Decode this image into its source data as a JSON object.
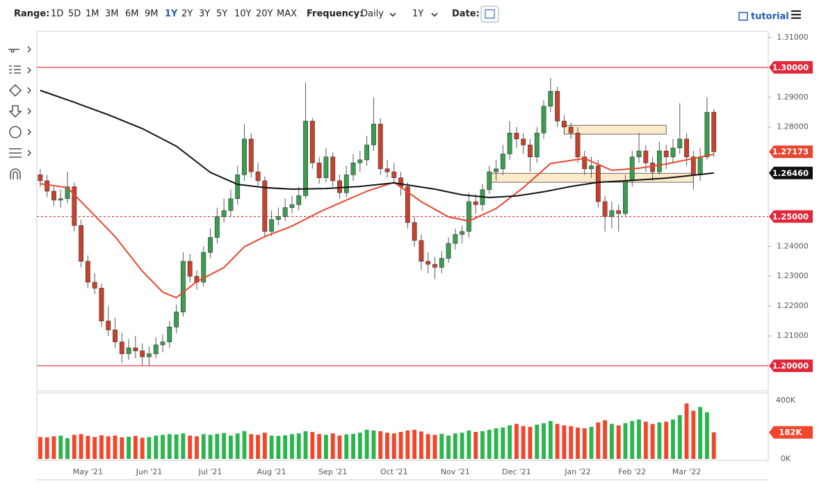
{
  "toolbar": {
    "range_label": "Range:",
    "ranges": [
      "1D",
      "5D",
      "1M",
      "3M",
      "6M",
      "9M",
      "1Y",
      "2Y",
      "3Y",
      "5Y",
      "10Y",
      "20Y",
      "MAX"
    ],
    "active_range": 6,
    "frequency_label": "Frequency:",
    "frequency": "Daily",
    "period": "1Y",
    "date_label": "Date:",
    "tutorial": "tutorial"
  },
  "chart_data": {
    "type": "candlestick",
    "categories": [
      null,
      null,
      null,
      null,
      null,
      null,
      null,
      "May '21",
      null,
      null,
      null,
      null,
      null,
      null,
      null,
      null,
      "Jun '21",
      null,
      null,
      null,
      null,
      null,
      null,
      null,
      null,
      "Jul '21",
      null,
      null,
      null,
      null,
      null,
      null,
      null,
      null,
      "Aug '21",
      null,
      null,
      null,
      null,
      null,
      null,
      null,
      null,
      "Sep '21",
      null,
      null,
      null,
      null,
      null,
      null,
      null,
      null,
      "Oct '21",
      null,
      null,
      null,
      null,
      null,
      null,
      null,
      null,
      "Nov '21",
      null,
      null,
      null,
      null,
      null,
      null,
      null,
      null,
      "Dec '21",
      null,
      null,
      null,
      null,
      null,
      null,
      null,
      null,
      "Jan '22",
      null,
      null,
      null,
      null,
      null,
      null,
      null,
      "Feb '22",
      null,
      null,
      null,
      null,
      null,
      null,
      null,
      "Mar '22",
      null,
      null,
      null,
      null
    ],
    "ohlc": [
      [
        1.264,
        1.266,
        1.26,
        1.262
      ],
      [
        1.262,
        1.264,
        1.2565,
        1.2585
      ],
      [
        1.2585,
        1.26,
        1.2535,
        1.2555
      ],
      [
        1.2555,
        1.259,
        1.253,
        1.256
      ],
      [
        1.256,
        1.265,
        1.2545,
        1.26
      ],
      [
        1.26,
        1.2615,
        1.245,
        1.247
      ],
      [
        1.247,
        1.249,
        1.233,
        1.235
      ],
      [
        1.235,
        1.237,
        1.226,
        1.228
      ],
      [
        1.228,
        1.231,
        1.224,
        1.226
      ],
      [
        1.226,
        1.2275,
        1.213,
        1.215
      ],
      [
        1.215,
        1.22,
        1.21,
        1.212
      ],
      [
        1.212,
        1.216,
        1.206,
        1.208
      ],
      [
        1.208,
        1.211,
        1.201,
        1.204
      ],
      [
        1.204,
        1.209,
        1.202,
        1.206
      ],
      [
        1.206,
        1.21,
        1.2025,
        1.205
      ],
      [
        1.205,
        1.2075,
        1.2,
        1.203
      ],
      [
        1.203,
        1.2065,
        1.2,
        1.204
      ],
      [
        1.204,
        1.2095,
        1.2025,
        1.207
      ],
      [
        1.207,
        1.2105,
        1.2045,
        1.208
      ],
      [
        1.208,
        1.215,
        1.206,
        1.213
      ],
      [
        1.213,
        1.2205,
        1.211,
        1.218
      ],
      [
        1.218,
        1.238,
        1.2165,
        1.235
      ],
      [
        1.235,
        1.2375,
        1.228,
        1.23
      ],
      [
        1.23,
        1.232,
        1.2255,
        1.228
      ],
      [
        1.228,
        1.24,
        1.2265,
        1.238
      ],
      [
        1.238,
        1.246,
        1.236,
        1.243
      ],
      [
        1.243,
        1.253,
        1.241,
        1.25
      ],
      [
        1.25,
        1.256,
        1.248,
        1.252
      ],
      [
        1.252,
        1.259,
        1.25,
        1.256
      ],
      [
        1.256,
        1.267,
        1.254,
        1.264
      ],
      [
        1.264,
        1.281,
        1.262,
        1.276
      ],
      [
        1.276,
        1.278,
        1.263,
        1.265
      ],
      [
        1.265,
        1.268,
        1.26,
        1.262
      ],
      [
        1.262,
        1.2635,
        1.243,
        1.245
      ],
      [
        1.245,
        1.252,
        1.2435,
        1.249
      ],
      [
        1.249,
        1.253,
        1.247,
        1.25
      ],
      [
        1.25,
        1.256,
        1.2485,
        1.253
      ],
      [
        1.253,
        1.257,
        1.251,
        1.254
      ],
      [
        1.254,
        1.26,
        1.252,
        1.257
      ],
      [
        1.257,
        1.295,
        1.256,
        1.282
      ],
      [
        1.282,
        1.283,
        1.266,
        1.268
      ],
      [
        1.268,
        1.27,
        1.261,
        1.263
      ],
      [
        1.263,
        1.273,
        1.2615,
        1.27
      ],
      [
        1.27,
        1.2715,
        1.26,
        1.262
      ],
      [
        1.262,
        1.264,
        1.256,
        1.258
      ],
      [
        1.258,
        1.267,
        1.2565,
        1.264
      ],
      [
        1.264,
        1.271,
        1.262,
        1.268
      ],
      [
        1.268,
        1.272,
        1.265,
        1.269
      ],
      [
        1.269,
        1.277,
        1.267,
        1.274
      ],
      [
        1.274,
        1.29,
        1.272,
        1.281
      ],
      [
        1.281,
        1.283,
        1.264,
        1.266
      ],
      [
        1.266,
        1.269,
        1.263,
        1.265
      ],
      [
        1.265,
        1.268,
        1.261,
        1.263
      ],
      [
        1.263,
        1.265,
        1.257,
        1.26
      ],
      [
        1.26,
        1.2615,
        1.246,
        1.248
      ],
      [
        1.248,
        1.25,
        1.24,
        1.242
      ],
      [
        1.242,
        1.244,
        1.232,
        1.235
      ],
      [
        1.235,
        1.238,
        1.231,
        1.234
      ],
      [
        1.234,
        1.2365,
        1.229,
        1.233
      ],
      [
        1.233,
        1.2385,
        1.231,
        1.236
      ],
      [
        1.236,
        1.243,
        1.2345,
        1.241
      ],
      [
        1.241,
        1.246,
        1.239,
        1.244
      ],
      [
        1.244,
        1.247,
        1.241,
        1.245
      ],
      [
        1.245,
        1.258,
        1.243,
        1.255
      ],
      [
        1.255,
        1.2575,
        1.251,
        1.254
      ],
      [
        1.254,
        1.261,
        1.252,
        1.259
      ],
      [
        1.259,
        1.267,
        1.2575,
        1.265
      ],
      [
        1.265,
        1.269,
        1.262,
        1.266
      ],
      [
        1.266,
        1.274,
        1.264,
        1.271
      ],
      [
        1.271,
        1.282,
        1.269,
        1.278
      ],
      [
        1.278,
        1.28,
        1.273,
        1.276
      ],
      [
        1.276,
        1.278,
        1.271,
        1.274
      ],
      [
        1.274,
        1.276,
        1.265,
        1.27
      ],
      [
        1.27,
        1.28,
        1.268,
        1.278
      ],
      [
        1.278,
        1.289,
        1.276,
        1.287
      ],
      [
        1.287,
        1.2965,
        1.285,
        1.292
      ],
      [
        1.292,
        1.2935,
        1.28,
        1.282
      ],
      [
        1.282,
        1.284,
        1.2775,
        1.28
      ],
      [
        1.28,
        1.2815,
        1.276,
        1.278
      ],
      [
        1.278,
        1.28,
        1.268,
        1.27
      ],
      [
        1.27,
        1.272,
        1.264,
        1.266
      ],
      [
        1.266,
        1.27,
        1.263,
        1.267
      ],
      [
        1.267,
        1.269,
        1.253,
        1.255
      ],
      [
        1.255,
        1.257,
        1.245,
        1.25
      ],
      [
        1.25,
        1.255,
        1.246,
        1.252
      ],
      [
        1.252,
        1.254,
        1.245,
        1.251
      ],
      [
        1.251,
        1.264,
        1.25,
        1.262
      ],
      [
        1.262,
        1.272,
        1.26,
        1.27
      ],
      [
        1.27,
        1.278,
        1.268,
        1.272
      ],
      [
        1.272,
        1.274,
        1.265,
        1.268
      ],
      [
        1.268,
        1.27,
        1.262,
        1.265
      ],
      [
        1.265,
        1.275,
        1.264,
        1.272
      ],
      [
        1.272,
        1.274,
        1.266,
        1.27
      ],
      [
        1.27,
        1.276,
        1.268,
        1.273
      ],
      [
        1.273,
        1.288,
        1.271,
        1.276
      ],
      [
        1.276,
        1.278,
        1.267,
        1.27
      ],
      [
        1.27,
        1.272,
        1.259,
        1.264
      ],
      [
        1.264,
        1.273,
        1.262,
        1.27
      ],
      [
        1.27,
        1.29,
        1.269,
        1.285
      ],
      [
        1.285,
        1.286,
        1.27,
        1.27173
      ]
    ],
    "volume": [
      150,
      148,
      155,
      160,
      142,
      165,
      170,
      158,
      150,
      162,
      155,
      160,
      148,
      152,
      158,
      145,
      150,
      160,
      165,
      170,
      168,
      175,
      160,
      155,
      170,
      165,
      172,
      178,
      160,
      175,
      190,
      170,
      165,
      180,
      160,
      158,
      162,
      170,
      175,
      190,
      185,
      170,
      165,
      175,
      160,
      168,
      172,
      180,
      200,
      195,
      190,
      180,
      175,
      185,
      195,
      200,
      188,
      170,
      165,
      172,
      160,
      175,
      180,
      195,
      185,
      190,
      200,
      210,
      215,
      230,
      240,
      225,
      220,
      235,
      245,
      260,
      240,
      230,
      225,
      215,
      210,
      220,
      250,
      265,
      240,
      230,
      245,
      260,
      270,
      255,
      240,
      250,
      255,
      270,
      300,
      380,
      330,
      355,
      320,
      182
    ],
    "up_color": "#3a9d4f",
    "down_color": "#c8412c",
    "volume_up_color": "#2bb54d",
    "volume_down_color": "#f2462c",
    "moving_averages": [
      {
        "color": "#e8452e",
        "x": [
          0,
          4,
          7,
          11,
          15,
          18,
          20,
          23,
          27,
          30,
          33,
          37,
          41,
          45,
          48,
          52,
          56,
          60,
          63,
          67,
          71,
          75,
          80,
          84,
          88,
          92,
          96,
          99
        ],
        "values": [
          1.261,
          1.2597,
          1.2527,
          1.2433,
          1.2317,
          1.2247,
          1.2228,
          1.2282,
          1.2329,
          1.2399,
          1.2433,
          1.2468,
          1.2515,
          1.2555,
          1.2585,
          1.2615,
          1.255,
          1.2499,
          1.2485,
          1.2527,
          1.2597,
          1.2678,
          1.2695,
          1.2655,
          1.2662,
          1.2676,
          1.2695,
          1.2709
        ]
      },
      {
        "color": "#111111",
        "x": [
          0,
          5,
          10,
          15,
          20,
          25,
          29,
          33,
          37,
          42,
          47,
          52,
          58,
          62,
          66,
          70,
          74,
          78,
          82,
          86,
          92,
          99
        ],
        "values": [
          1.2923,
          1.2883,
          1.2841,
          1.2795,
          1.2736,
          1.2648,
          1.2608,
          1.2597,
          1.2592,
          1.2594,
          1.2601,
          1.2613,
          1.2592,
          1.2573,
          1.2564,
          1.2569,
          1.2583,
          1.2601,
          1.2615,
          1.262,
          1.2629,
          1.2646
        ]
      }
    ],
    "levels": [
      {
        "value": 1.3,
        "label": "1.30000",
        "dashed": false
      },
      {
        "value": 1.25,
        "label": "1.25000",
        "dashed": true
      },
      {
        "value": 1.2,
        "label": "1.20000",
        "dashed": false
      }
    ],
    "level_color": "#e0283a",
    "tags": [
      {
        "value": 1.27173,
        "label": "1.27173",
        "color": "#e8452e"
      },
      {
        "value": 1.2646,
        "label": "1.26460",
        "color": "#111111"
      }
    ],
    "zones": [
      {
        "x": [
          77,
          92
        ],
        "y": [
          1.2776,
          1.2806
        ]
      },
      {
        "x": [
          66,
          96
        ],
        "y": [
          1.2615,
          1.2645
        ]
      }
    ],
    "xlim": [
      -0.5,
      107
    ],
    "ylim": [
      1.1916,
      1.3121
    ],
    "yticks": [
      {
        "value": 1.31,
        "label": "1.31000"
      },
      {
        "value": 1.29,
        "label": "1.29000"
      },
      {
        "value": 1.28,
        "label": "1.28000"
      },
      {
        "value": 1.24,
        "label": "1.24000"
      },
      {
        "value": 1.23,
        "label": "1.23000"
      },
      {
        "value": 1.22,
        "label": "1.22000"
      },
      {
        "value": 1.21,
        "label": "1.21000"
      }
    ],
    "volume_ylim": [
      0,
      452
    ],
    "volume_ticks": [
      {
        "value": 400,
        "label": "400K"
      },
      {
        "value": 0,
        "label": "0K"
      }
    ],
    "volume_tag": {
      "value": 182,
      "label": "182K"
    }
  }
}
